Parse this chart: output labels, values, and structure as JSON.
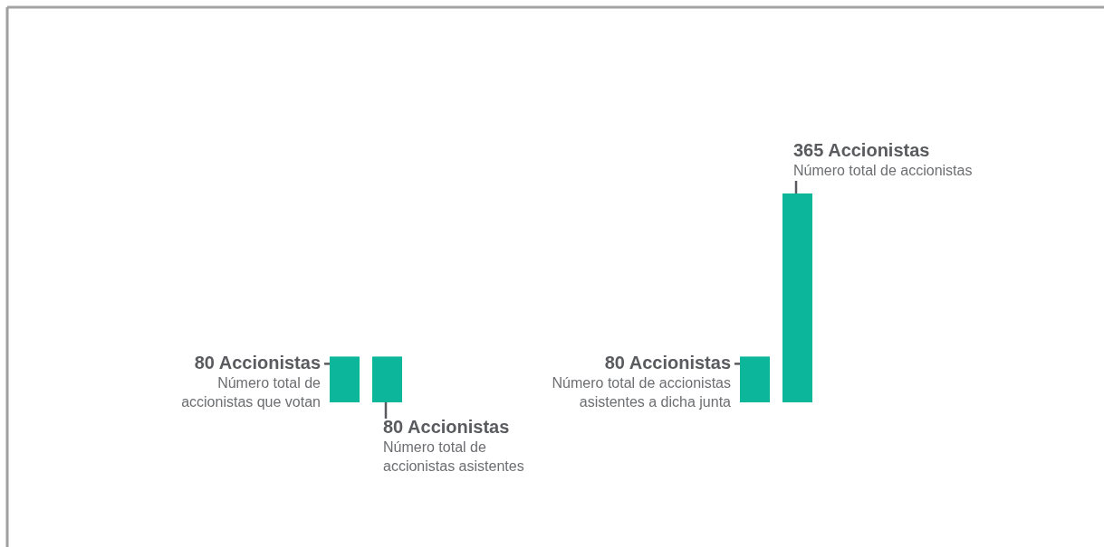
{
  "chart_data": [
    {
      "type": "bar",
      "categories": [
        null,
        null
      ],
      "values": [
        80,
        80
      ],
      "color": "#0bb69b",
      "value_labels": [
        "80 Accionistas",
        "80 Accionistas"
      ],
      "annotations": [
        "Número total de\naccionistas que votan",
        "Número total de\naccionistas asistentes"
      ]
    },
    {
      "type": "bar",
      "categories": [
        null,
        null
      ],
      "values": [
        80,
        365
      ],
      "color": "#0bb69b",
      "value_labels": [
        "80 Accionistas",
        "365 Accionistas"
      ],
      "annotations": [
        "Número total de accionistas\nasistentes a dicha junta",
        "Número total de accionistas"
      ]
    }
  ]
}
